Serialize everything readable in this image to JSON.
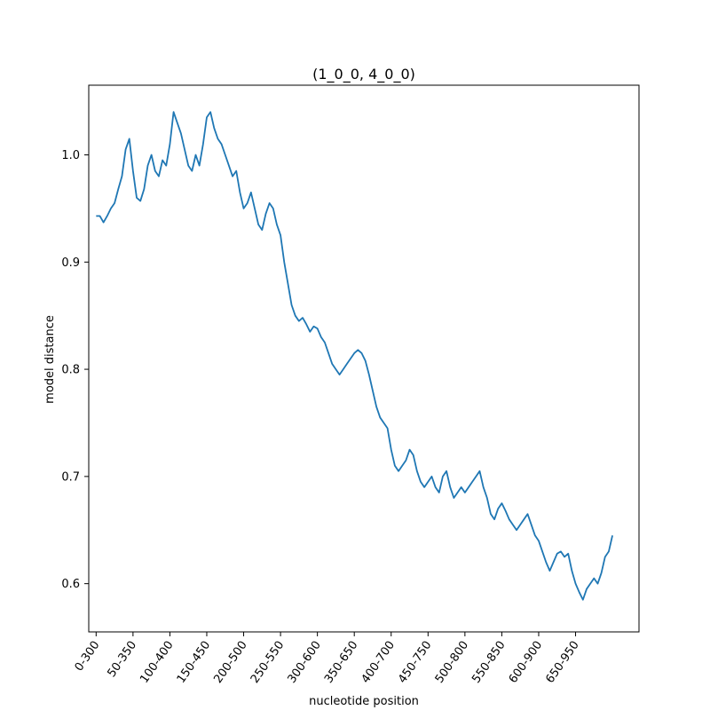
{
  "chart_data": {
    "type": "line",
    "title": "(1_0_0, 4_0_0)",
    "xlabel": "nucleotide position",
    "ylabel": "model distance",
    "x_tick_labels": [
      "0-300",
      "50-350",
      "100-400",
      "150-450",
      "200-500",
      "250-550",
      "300-600",
      "350-650",
      "400-700",
      "450-750",
      "500-800",
      "550-850",
      "600-900",
      "650-950"
    ],
    "x_tick_step": 50,
    "xlim": [
      -10,
      736
    ],
    "y_ticks": [
      0.6,
      0.7,
      0.8,
      0.9,
      1.0
    ],
    "y_tick_labels": [
      "0.6",
      "0.7",
      "0.8",
      "0.9",
      "1.0"
    ],
    "ylim": [
      0.555,
      1.065
    ],
    "grid": false,
    "color": "#1f77b4",
    "series": [
      {
        "x": [
          0,
          5,
          10,
          15,
          20,
          25,
          30,
          35,
          40,
          45,
          50,
          55,
          60,
          65,
          70,
          75,
          80,
          85,
          90,
          95,
          100,
          105,
          110,
          115,
          120,
          125,
          130,
          135,
          140,
          145,
          150,
          155,
          160,
          165,
          170,
          175,
          180,
          185,
          190,
          195,
          200,
          205,
          210,
          215,
          220,
          225,
          230,
          235,
          240,
          245,
          250,
          255,
          260,
          265,
          270,
          275,
          280,
          285,
          290,
          295,
          300,
          305,
          310,
          315,
          320,
          325,
          330,
          335,
          340,
          345,
          350,
          355,
          360,
          365,
          370,
          375,
          380,
          385,
          390,
          395,
          400,
          405,
          410,
          415,
          420,
          425,
          430,
          435,
          440,
          445,
          450,
          455,
          460,
          465,
          470,
          475,
          480,
          485,
          490,
          495,
          500,
          505,
          510,
          515,
          520,
          525,
          530,
          535,
          540,
          545,
          550,
          555,
          560,
          565,
          570,
          575,
          580,
          585,
          590,
          595,
          600,
          605,
          610,
          615,
          620,
          625,
          630,
          635,
          640,
          645,
          650,
          655,
          660,
          665,
          670,
          675,
          680,
          685,
          690,
          695,
          700
        ],
        "y": [
          0.943,
          0.943,
          0.937,
          0.943,
          0.95,
          0.955,
          0.968,
          0.98,
          1.005,
          1.015,
          0.985,
          0.96,
          0.957,
          0.968,
          0.99,
          1.0,
          0.985,
          0.98,
          0.995,
          0.99,
          1.01,
          1.04,
          1.03,
          1.02,
          1.005,
          0.99,
          0.985,
          1.0,
          0.99,
          1.01,
          1.035,
          1.04,
          1.025,
          1.015,
          1.01,
          1.0,
          0.99,
          0.98,
          0.985,
          0.965,
          0.95,
          0.955,
          0.965,
          0.95,
          0.935,
          0.93,
          0.945,
          0.955,
          0.95,
          0.935,
          0.925,
          0.9,
          0.88,
          0.86,
          0.85,
          0.845,
          0.848,
          0.842,
          0.835,
          0.84,
          0.838,
          0.83,
          0.825,
          0.815,
          0.805,
          0.8,
          0.795,
          0.8,
          0.805,
          0.81,
          0.815,
          0.818,
          0.815,
          0.808,
          0.795,
          0.78,
          0.765,
          0.755,
          0.75,
          0.745,
          0.725,
          0.71,
          0.705,
          0.71,
          0.715,
          0.725,
          0.72,
          0.705,
          0.695,
          0.69,
          0.695,
          0.7,
          0.69,
          0.685,
          0.7,
          0.705,
          0.69,
          0.68,
          0.685,
          0.69,
          0.685,
          0.69,
          0.695,
          0.7,
          0.705,
          0.69,
          0.68,
          0.665,
          0.66,
          0.67,
          0.675,
          0.668,
          0.66,
          0.655,
          0.65,
          0.655,
          0.66,
          0.665,
          0.655,
          0.645,
          0.64,
          0.63,
          0.62,
          0.612,
          0.62,
          0.628,
          0.63,
          0.625,
          0.628,
          0.612,
          0.6,
          0.592,
          0.585,
          0.595,
          0.6,
          0.605,
          0.6,
          0.61,
          0.625,
          0.63,
          0.645
        ]
      }
    ]
  }
}
